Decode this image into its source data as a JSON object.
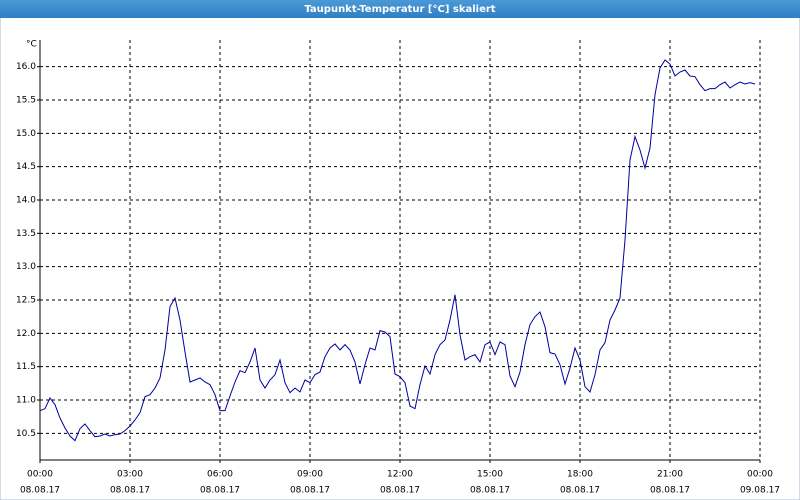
{
  "chart_data": {
    "type": "line",
    "title": "Taupunkt-Temperatur [°C] skaliert",
    "y_label": "°C",
    "x": [
      0,
      10,
      20,
      30,
      40,
      50,
      60,
      70,
      80,
      90,
      100,
      110,
      120,
      130,
      140,
      150,
      160,
      170,
      180,
      190,
      200,
      210,
      220,
      230,
      240,
      250,
      260,
      270,
      280,
      290,
      300,
      310,
      320,
      330,
      340,
      350,
      360,
      370,
      380,
      390,
      400,
      410,
      420,
      430,
      440,
      450,
      460,
      470,
      480,
      490,
      500,
      510,
      520,
      530,
      540,
      550,
      560,
      570,
      580,
      590,
      600,
      610,
      620,
      630,
      640,
      650,
      660,
      670,
      680,
      690,
      700,
      710,
      720,
      730,
      740,
      750,
      760,
      770,
      780,
      790,
      800,
      810,
      820,
      830,
      840,
      850,
      860,
      870,
      880,
      890,
      900,
      910,
      920,
      930,
      940,
      950,
      960,
      970,
      980,
      990,
      1000,
      1010,
      1020,
      1030,
      1040,
      1050,
      1060,
      1070,
      1080,
      1090,
      1100,
      1110,
      1120,
      1130,
      1140,
      1150,
      1160,
      1170,
      1180,
      1190,
      1200,
      1210,
      1220,
      1230,
      1240,
      1250,
      1260,
      1270,
      1280,
      1290,
      1300,
      1310,
      1320,
      1330,
      1340,
      1350,
      1360,
      1370,
      1380,
      1390,
      1400,
      1410,
      1420,
      1430
    ],
    "series": [
      {
        "name": "Taupunkt-Temperatur",
        "color": "#0000a0",
        "values": [
          10.84,
          10.87,
          11.03,
          10.93,
          10.73,
          10.58,
          10.46,
          10.39,
          10.57,
          10.64,
          10.54,
          10.45,
          10.46,
          10.49,
          10.46,
          10.48,
          10.49,
          10.54,
          10.61,
          10.7,
          10.81,
          11.05,
          11.08,
          11.18,
          11.33,
          11.75,
          12.4,
          12.53,
          12.2,
          11.72,
          11.27,
          11.3,
          11.33,
          11.27,
          11.23,
          11.08,
          10.84,
          10.84,
          11.06,
          11.27,
          11.44,
          11.41,
          11.57,
          11.78,
          11.3,
          11.18,
          11.3,
          11.38,
          11.6,
          11.26,
          11.11,
          11.18,
          11.12,
          11.3,
          11.26,
          11.38,
          11.42,
          11.65,
          11.78,
          11.84,
          11.75,
          11.83,
          11.75,
          11.57,
          11.24,
          11.53,
          11.78,
          11.75,
          12.04,
          12.02,
          11.95,
          11.39,
          11.35,
          11.26,
          10.91,
          10.87,
          11.23,
          11.51,
          11.39,
          11.68,
          11.83,
          11.9,
          12.2,
          12.58,
          11.98,
          11.6,
          11.65,
          11.68,
          11.57,
          11.83,
          11.87,
          11.68,
          11.87,
          11.83,
          11.36,
          11.2,
          11.42,
          11.83,
          12.13,
          12.25,
          12.32,
          12.1,
          11.71,
          11.69,
          11.53,
          11.24,
          11.48,
          11.78,
          11.6,
          11.2,
          11.12,
          11.38,
          11.75,
          11.86,
          12.2,
          12.35,
          12.53,
          13.4,
          14.6,
          14.95,
          14.75,
          14.48,
          14.78,
          15.58,
          15.98,
          16.1,
          16.04,
          15.86,
          15.92,
          15.95,
          15.86,
          15.85,
          15.73,
          15.64,
          15.67,
          15.67,
          15.73,
          15.77,
          15.68,
          15.73,
          15.77,
          15.74,
          15.76,
          15.74
        ]
      }
    ],
    "xlim": [
      0,
      1440
    ],
    "xticks": [
      {
        "value": 0,
        "label": "00:00"
      },
      {
        "value": 180,
        "label": "03:00"
      },
      {
        "value": 360,
        "label": "06:00"
      },
      {
        "value": 540,
        "label": "09:00"
      },
      {
        "value": 720,
        "label": "12:00"
      },
      {
        "value": 900,
        "label": "15:00"
      },
      {
        "value": 1080,
        "label": "18:00"
      },
      {
        "value": 1260,
        "label": "21:00"
      },
      {
        "value": 1440,
        "label": "00:00"
      }
    ],
    "xtick_dates": [
      "08.08.17",
      "08.08.17",
      "08.08.17",
      "08.08.17",
      "08.08.17",
      "08.08.17",
      "08.08.17",
      "08.08.17",
      "09.08.17"
    ],
    "ylim": [
      10.1,
      16.4
    ],
    "yticks": [
      {
        "value": 10.5,
        "label": "10.5"
      },
      {
        "value": 11,
        "label": "11.0"
      },
      {
        "value": 11.5,
        "label": "11.5"
      },
      {
        "value": 12,
        "label": "12.0"
      },
      {
        "value": 12.5,
        "label": "12.5"
      },
      {
        "value": 13,
        "label": "13.0"
      },
      {
        "value": 13.5,
        "label": "13.5"
      },
      {
        "value": 14,
        "label": "14.0"
      },
      {
        "value": 14.5,
        "label": "14.5"
      },
      {
        "value": 15,
        "label": "15.0"
      },
      {
        "value": 15.5,
        "label": "15.5"
      },
      {
        "value": 16,
        "label": "16.0"
      }
    ],
    "grid": true
  }
}
